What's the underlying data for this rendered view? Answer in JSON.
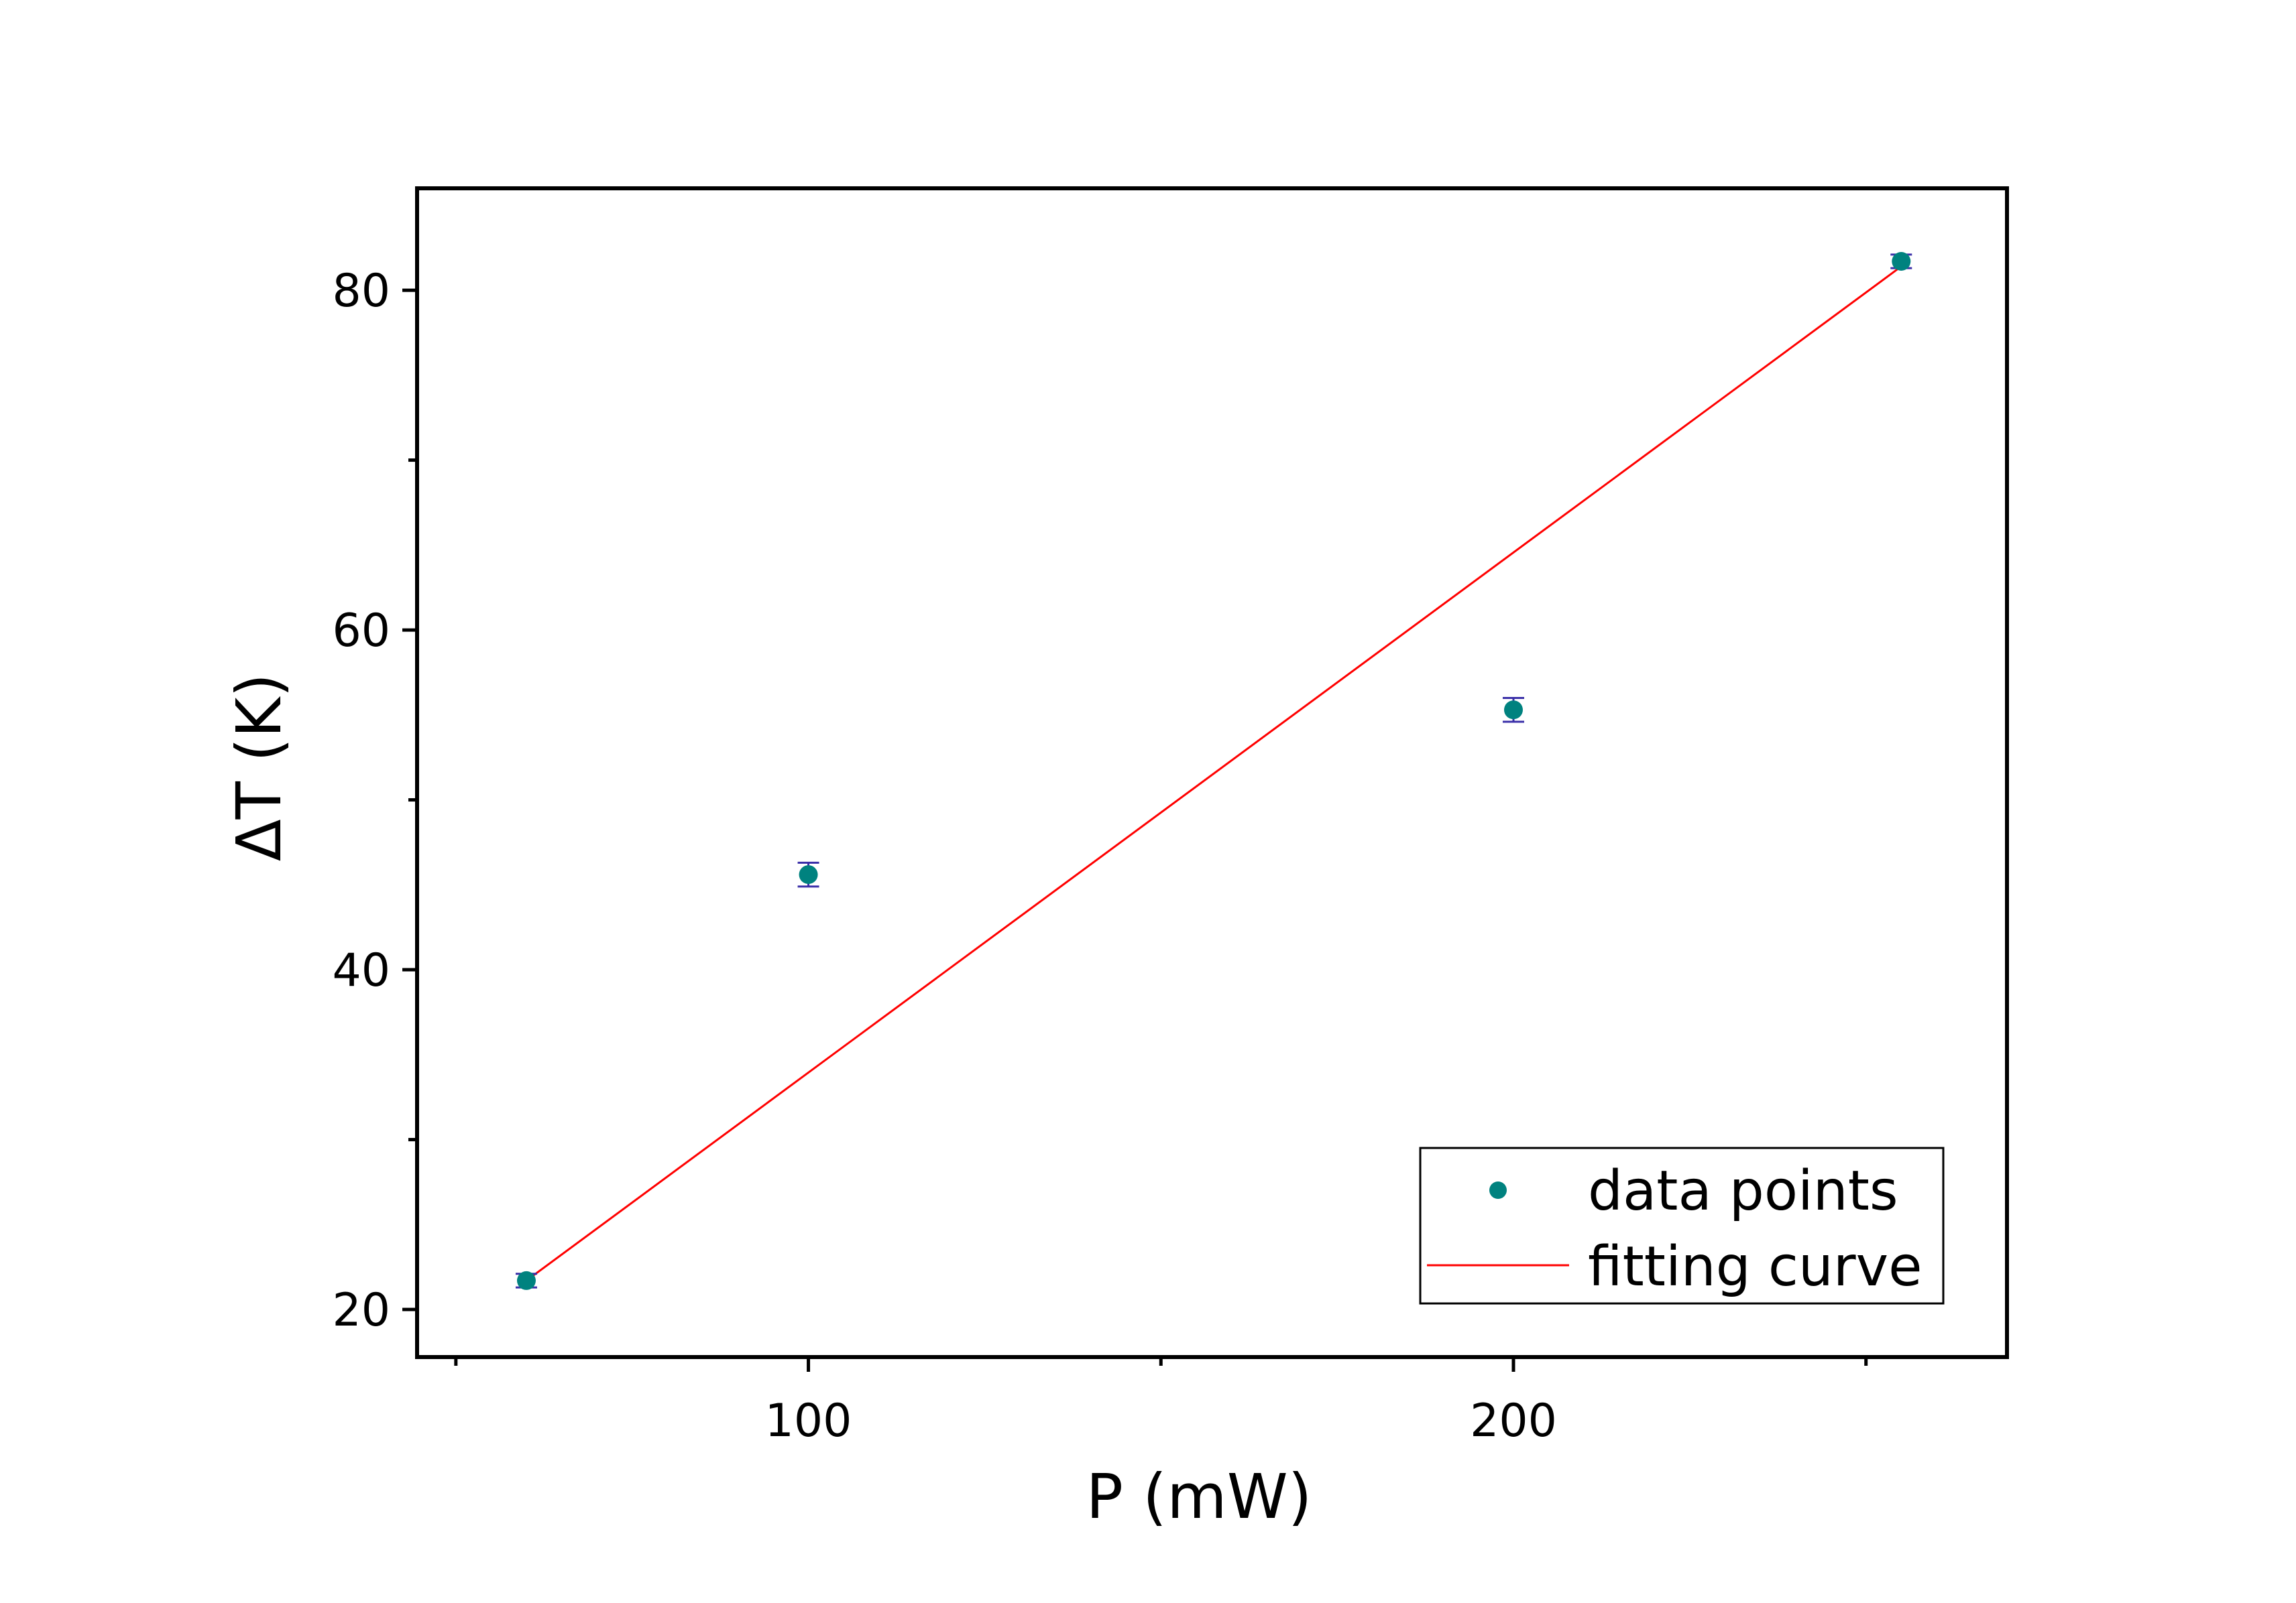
{
  "chart_data": {
    "type": "scatter",
    "title": "",
    "xlabel": "P (mW)",
    "ylabel": "ΔT (K)",
    "xlim": [
      44.5,
      270
    ],
    "ylim": [
      17.2,
      86
    ],
    "xticks": [
      100,
      200
    ],
    "xticks_minor": [
      50,
      150,
      250
    ],
    "yticks": [
      20,
      40,
      60,
      80
    ],
    "yticks_minor": [
      30,
      50,
      70
    ],
    "series": [
      {
        "name": "data points",
        "kind": "scatter",
        "color": "#00827f",
        "error_bar_color": "#3a2fa8",
        "points": [
          {
            "x": 60,
            "y": 21.7,
            "err": 0.4
          },
          {
            "x": 100,
            "y": 45.6,
            "err": 0.7
          },
          {
            "x": 200,
            "y": 55.3,
            "err": 0.7
          },
          {
            "x": 255,
            "y": 81.7,
            "err": 0.4
          }
        ]
      },
      {
        "name": "fitting curve",
        "kind": "line",
        "color": "#ff0000",
        "points": [
          {
            "x": 60,
            "y": 21.7
          },
          {
            "x": 255,
            "y": 81.4
          }
        ]
      }
    ],
    "legend": {
      "position": "bottom-right",
      "entries": [
        "data points",
        "fitting curve"
      ]
    },
    "grid": false
  }
}
